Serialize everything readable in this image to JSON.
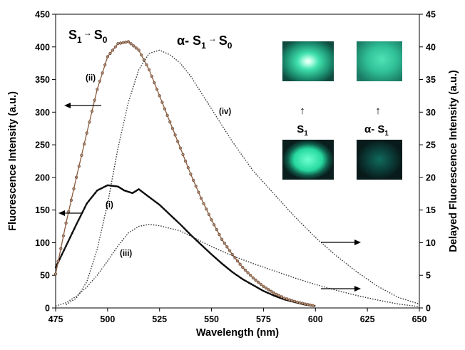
{
  "chart_data": {
    "type": "line",
    "xlabel": "Wavelength (nm)",
    "ylabel": "Fluorescence Intensity (a.u.)",
    "y2label": "Delayed Fluorescence Intensity (a.u.)",
    "xlim": [
      475,
      650
    ],
    "ylim": [
      0,
      450
    ],
    "y2lim": [
      0,
      45
    ],
    "xticks": [
      "475",
      "500",
      "525",
      "550",
      "575",
      "600",
      "625",
      "650"
    ],
    "yticks": [
      "0",
      "50",
      "100",
      "150",
      "200",
      "250",
      "300",
      "350",
      "400",
      "450"
    ],
    "y2ticks": [
      "0",
      "5",
      "10",
      "15",
      "20",
      "25",
      "30",
      "35",
      "40",
      "45"
    ],
    "grid": false,
    "series": [
      {
        "name": "(i)",
        "axis": "left",
        "style": "solid-thick",
        "color": "#1a1a1a",
        "x": [
          475,
          480,
          485,
          490,
          495,
          500,
          505,
          508,
          512,
          515,
          520,
          525,
          530,
          535,
          540,
          545,
          550,
          555,
          560,
          565,
          570,
          575,
          580,
          585,
          590,
          595,
          600
        ],
        "y": [
          62,
          95,
          128,
          160,
          180,
          188,
          186,
          180,
          176,
          182,
          170,
          158,
          143,
          128,
          112,
          97,
          82,
          68,
          55,
          44,
          35,
          26,
          19,
          13,
          9,
          5,
          3
        ]
      },
      {
        "name": "(ii)",
        "axis": "left",
        "style": "solid-markers",
        "color": "#8a5a3a",
        "x": [
          475,
          480,
          485,
          490,
          495,
          500,
          505,
          510,
          515,
          520,
          525,
          530,
          535,
          540,
          545,
          550,
          555,
          560,
          565,
          570,
          575,
          580,
          585,
          590,
          595,
          600
        ],
        "y": [
          52,
          130,
          200,
          268,
          335,
          385,
          405,
          408,
          395,
          365,
          325,
          285,
          245,
          205,
          168,
          135,
          105,
          82,
          62,
          46,
          33,
          23,
          15,
          10,
          6,
          3
        ]
      },
      {
        "name": "(iii)",
        "axis": "right",
        "style": "dotted",
        "color": "#333333",
        "x": [
          475,
          480,
          485,
          490,
          495,
          500,
          505,
          510,
          515,
          520,
          525,
          530,
          535,
          540,
          545,
          550,
          560,
          570,
          580,
          590,
          600,
          610,
          620,
          630,
          640,
          650
        ],
        "y": [
          0.3,
          0.8,
          1.8,
          3.2,
          5.0,
          7.2,
          9.5,
          11.5,
          12.5,
          12.8,
          12.6,
          12.2,
          11.8,
          11.0,
          10.2,
          9.4,
          8.0,
          6.8,
          5.7,
          4.6,
          3.6,
          2.7,
          1.9,
          1.2,
          0.6,
          0.2
        ]
      },
      {
        "name": "(iv)",
        "axis": "right",
        "style": "dotted",
        "color": "#333333",
        "x": [
          480,
          485,
          490,
          495,
          500,
          505,
          510,
          515,
          520,
          525,
          530,
          535,
          540,
          545,
          550,
          555,
          560,
          570,
          580,
          590,
          600,
          610,
          620,
          630,
          640,
          650
        ],
        "y": [
          0.5,
          1.5,
          4.0,
          9.0,
          16.0,
          24.5,
          31.5,
          36.5,
          39.0,
          39.5,
          38.8,
          37.5,
          35.5,
          33.0,
          30.5,
          28.0,
          25.5,
          21.0,
          17.5,
          14.0,
          10.8,
          8.0,
          5.5,
          3.3,
          1.6,
          0.6
        ]
      }
    ],
    "annotations": {
      "label_i": "(i)",
      "label_ii": "(ii)",
      "label_iii": "(iii)",
      "label_iv": "(iv)",
      "s1_to_s0_main": "S",
      "s1_to_s0_sub1": "1",
      "s1_to_s0_arrow": "→",
      "s1_to_s0_main2": "S",
      "s1_to_s0_sub0": "0",
      "alpha_prefix": "α- S",
      "alpha_sub1": "1",
      "alpha_arrow": "→",
      "alpha_main2": "S",
      "alpha_sub0": "0"
    },
    "inset": {
      "left_label": "S",
      "left_label_sub": "1",
      "right_label": "α- S",
      "right_label_sub": "1",
      "up_arrow": "↑",
      "color_bright": "#3df5b8",
      "color_mid": "#1cb88a",
      "color_dark": "#0a4f45",
      "color_bg": "#0b2a26"
    }
  }
}
